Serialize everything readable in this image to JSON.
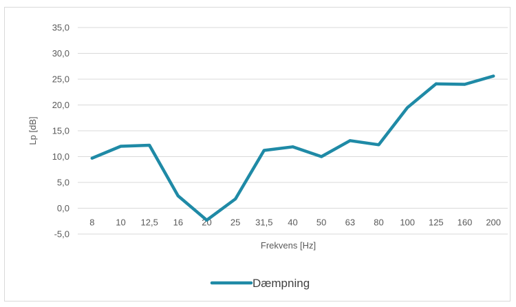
{
  "chart_data": {
    "type": "line",
    "title": "",
    "xlabel": "Frekvens [Hz]",
    "ylabel": "Lp [dB]",
    "categories": [
      "8",
      "10",
      "12,5",
      "16",
      "20",
      "25",
      "31,5",
      "40",
      "50",
      "63",
      "80",
      "100",
      "125",
      "160",
      "200"
    ],
    "series": [
      {
        "name": "Dæmpning",
        "color": "#1f8aa6",
        "values": [
          9.7,
          12.0,
          12.2,
          2.4,
          -2.3,
          1.8,
          11.2,
          11.9,
          10.0,
          13.1,
          12.3,
          19.5,
          24.1,
          24.0,
          25.6
        ]
      }
    ],
    "ylim": [
      -5,
      35
    ],
    "y_ticks": [
      "-5,0",
      "0,0",
      "5,0",
      "10,0",
      "15,0",
      "20,0",
      "25,0",
      "30,0",
      "35,0"
    ],
    "y_tick_values": [
      -5,
      0,
      5,
      10,
      15,
      20,
      25,
      30,
      35
    ],
    "grid": true,
    "legend": "bottom",
    "gridline_color": "#d9d9d9"
  }
}
